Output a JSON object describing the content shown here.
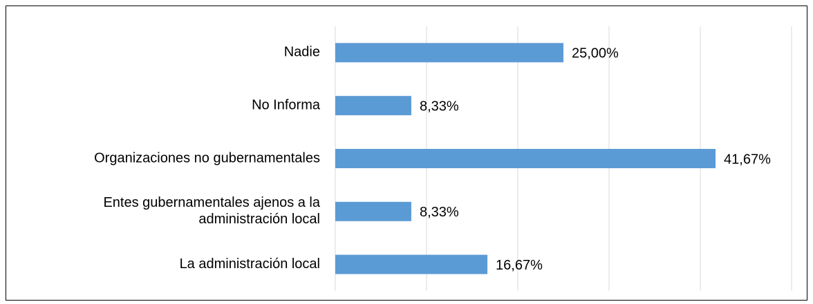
{
  "chart_data": {
    "type": "bar",
    "orientation": "horizontal",
    "categories": [
      "Nadie",
      "No Informa",
      "Organizaciones no gubernamentales",
      "Entes gubernamentales ajenos a la administración local",
      "La administración local"
    ],
    "values": [
      25,
      8.33,
      41.67,
      8.33,
      16.67
    ],
    "value_labels": [
      "25,00%",
      "8,33%",
      "41,67%",
      "8,33%",
      "16,67%"
    ],
    "color": "#5b9bd5",
    "xlim": [
      0,
      50
    ],
    "xticks": [
      0,
      10,
      20,
      30,
      40,
      50
    ],
    "grid": true
  }
}
